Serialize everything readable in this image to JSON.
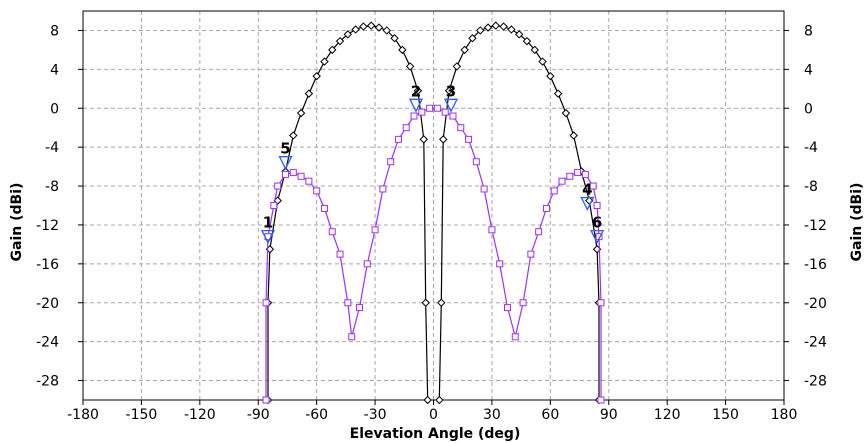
{
  "chart_data": {
    "type": "line",
    "xlabel": "Elevation Angle (deg)",
    "ylabel": "Gain (dBi)",
    "ylabel_right": "Gain (dBi)",
    "xlim": [
      -180,
      180
    ],
    "ylim": [
      -30,
      10
    ],
    "xticks": [
      -180,
      -150,
      -120,
      -90,
      -60,
      -30,
      0,
      30,
      60,
      90,
      120,
      150,
      180
    ],
    "xtick_labels": [
      "-180",
      "-150",
      "-120",
      "-90",
      "-60",
      "-30",
      "0",
      "30",
      "60",
      "90",
      "120",
      "150",
      "180"
    ],
    "yticks": [
      8,
      4,
      0,
      -4,
      -8,
      -12,
      -16,
      -20,
      -24,
      -28
    ],
    "ytick_labels": [
      "8",
      "4",
      "0",
      "-4",
      "-8",
      "-12",
      "-16",
      "-20",
      "-24",
      "-28"
    ],
    "grid": true,
    "legend": "none",
    "series": [
      {
        "color": "#000000",
        "marker": "diamond",
        "points": [
          [
            -85,
            -30
          ],
          [
            -85,
            -20
          ],
          [
            -84,
            -14.5
          ],
          [
            -80,
            -9.5
          ],
          [
            -76,
            -6.5
          ],
          [
            -72,
            -2.8
          ],
          [
            -68,
            -0.5
          ],
          [
            -64,
            1.5
          ],
          [
            -60,
            3.3
          ],
          [
            -56,
            4.8
          ],
          [
            -52,
            6.0
          ],
          [
            -48,
            6.9
          ],
          [
            -44,
            7.6
          ],
          [
            -40,
            8.1
          ],
          [
            -36,
            8.4
          ],
          [
            -32,
            8.5
          ],
          [
            -28,
            8.3
          ],
          [
            -24,
            8.0
          ],
          [
            -20,
            7.2
          ],
          [
            -16,
            6.0
          ],
          [
            -12,
            4.3
          ],
          [
            -8,
            1.8
          ],
          [
            -5,
            -3.2
          ],
          [
            -4,
            -20
          ],
          [
            -3,
            -30
          ]
        ]
      },
      {
        "color": "#000000",
        "marker": "diamond",
        "points": [
          [
            3,
            -30
          ],
          [
            4,
            -20
          ],
          [
            5,
            -3.2
          ],
          [
            8,
            1.8
          ],
          [
            12,
            4.3
          ],
          [
            16,
            6.0
          ],
          [
            20,
            7.2
          ],
          [
            24,
            8.0
          ],
          [
            28,
            8.3
          ],
          [
            32,
            8.5
          ],
          [
            36,
            8.4
          ],
          [
            40,
            8.1
          ],
          [
            44,
            7.6
          ],
          [
            48,
            6.9
          ],
          [
            52,
            6.0
          ],
          [
            56,
            4.8
          ],
          [
            60,
            3.3
          ],
          [
            64,
            1.5
          ],
          [
            68,
            -0.5
          ],
          [
            72,
            -2.8
          ],
          [
            76,
            -6.5
          ],
          [
            80,
            -9.5
          ],
          [
            84,
            -14.5
          ],
          [
            85,
            -20
          ],
          [
            85,
            -30
          ]
        ]
      },
      {
        "color": "#9b30ff",
        "marker": "square",
        "points": [
          [
            -86,
            -30
          ],
          [
            -86,
            -20
          ],
          [
            -85,
            -13.2
          ],
          [
            -82,
            -10.0
          ],
          [
            -80,
            -8.0
          ],
          [
            -76,
            -6.8
          ],
          [
            -72,
            -6.6
          ],
          [
            -68,
            -7.0
          ],
          [
            -64,
            -7.5
          ],
          [
            -60,
            -8.5
          ],
          [
            -56,
            -10.3
          ],
          [
            -52,
            -12.7
          ],
          [
            -48,
            -15.0
          ],
          [
            -44,
            -20.0
          ],
          [
            -42,
            -23.5
          ],
          [
            -38,
            -20.5
          ],
          [
            -34,
            -16.0
          ],
          [
            -30,
            -12.5
          ],
          [
            -26,
            -8.3
          ],
          [
            -22,
            -5.5
          ],
          [
            -18,
            -3.2
          ],
          [
            -14,
            -2.0
          ],
          [
            -10,
            -0.8
          ],
          [
            -6,
            -0.4
          ],
          [
            -2,
            0.0
          ],
          [
            2,
            0.0
          ],
          [
            6,
            -0.4
          ],
          [
            10,
            -0.8
          ],
          [
            14,
            -2.0
          ],
          [
            18,
            -3.2
          ],
          [
            22,
            -5.5
          ],
          [
            26,
            -8.3
          ],
          [
            30,
            -12.5
          ],
          [
            34,
            -16.0
          ],
          [
            38,
            -20.5
          ],
          [
            42,
            -23.5
          ],
          [
            46,
            -20.0
          ],
          [
            50,
            -15.0
          ],
          [
            54,
            -12.7
          ],
          [
            58,
            -10.3
          ],
          [
            62,
            -8.5
          ],
          [
            66,
            -7.5
          ],
          [
            70,
            -7.0
          ],
          [
            74,
            -6.6
          ],
          [
            78,
            -6.8
          ],
          [
            82,
            -8.0
          ],
          [
            84,
            -10.0
          ],
          [
            85,
            -13.2
          ],
          [
            86,
            -20
          ],
          [
            86,
            -30
          ]
        ]
      }
    ],
    "markers": [
      {
        "label": "1",
        "x": -85,
        "y": -13.2
      },
      {
        "label": "2",
        "x": -9,
        "y": 0.3
      },
      {
        "label": "3",
        "x": 9,
        "y": 0.3
      },
      {
        "label": "4",
        "x": 79,
        "y": -9.8
      },
      {
        "label": "5",
        "x": -76,
        "y": -5.6
      },
      {
        "label": "6",
        "x": 84,
        "y": -13.2
      }
    ],
    "colors": {
      "series_black": "#000000",
      "series_purple": "#9b30ff",
      "marker_triangle": "#2a5cff",
      "grid": "#a8a8a8"
    }
  }
}
